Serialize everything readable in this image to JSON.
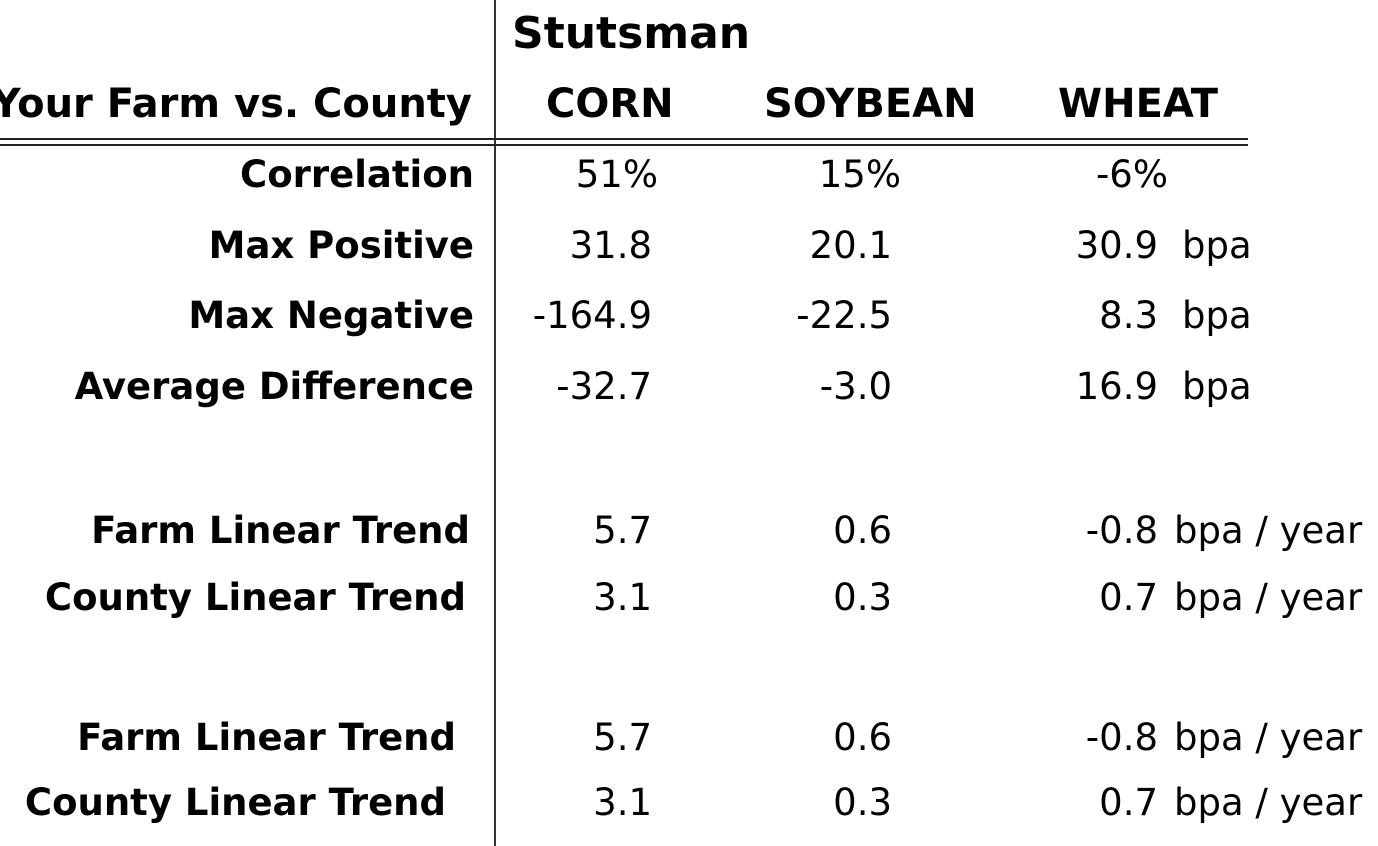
{
  "header": {
    "county": "Stutsman",
    "row_label": "Your Farm vs. County",
    "columns": [
      "CORN",
      "SOYBEAN",
      "WHEAT"
    ]
  },
  "rows": [
    {
      "label": "Correlation",
      "values": [
        "51%",
        "15%",
        "-6%"
      ],
      "unit": ""
    },
    {
      "label": "Max Positive",
      "values": [
        "31.8",
        "20.1",
        "30.9"
      ],
      "unit": "bpa"
    },
    {
      "label": "Max Negative",
      "values": [
        "-164.9",
        "-22.5",
        "8.3"
      ],
      "unit": "bpa"
    },
    {
      "label": "Average Difference",
      "values": [
        "-32.7",
        "-3.0",
        "16.9"
      ],
      "unit": "bpa"
    },
    {
      "label": "Farm Linear Trend",
      "values": [
        "5.7",
        "0.6",
        "-0.8"
      ],
      "unit": "bpa / year"
    },
    {
      "label": "County Linear Trend",
      "values": [
        "3.1",
        "0.3",
        "0.7"
      ],
      "unit": "bpa / year"
    },
    {
      "label": "Farm Linear Trend",
      "values": [
        "5.7",
        "0.6",
        "-0.8"
      ],
      "unit": "bpa / year"
    },
    {
      "label": "County Linear Trend",
      "values": [
        "3.1",
        "0.3",
        "0.7"
      ],
      "unit": "bpa / year"
    }
  ]
}
